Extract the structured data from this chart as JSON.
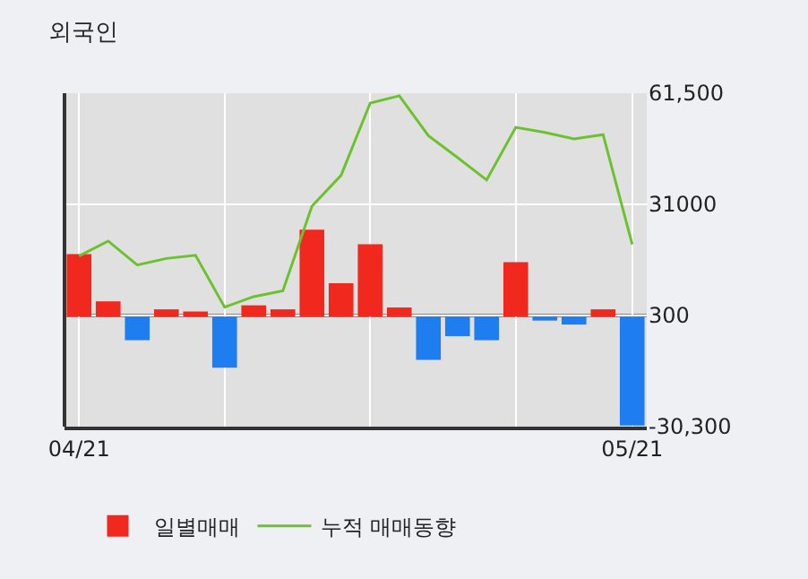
{
  "chart_data": {
    "type": "bar",
    "title": "외국인",
    "categories": [
      "04/21",
      null,
      null,
      null,
      null,
      null,
      null,
      null,
      null,
      null,
      null,
      null,
      null,
      null,
      null,
      null,
      null,
      null,
      null,
      "05/21"
    ],
    "series": [
      {
        "name": "일별매매",
        "colors": [
          "#f0281e",
          "#f0281e",
          "#1e7ef0",
          "#f0281e",
          "#f0281e",
          "#1e7ef0",
          "#f0281e",
          "#f0281e",
          "#f0281e",
          "#f0281e",
          "#f0281e",
          "#f0281e",
          "#1e7ef0",
          "#1e7ef0",
          "#1e7ef0",
          "#f0281e",
          "#1e7ef0",
          "#1e7ef0",
          "#f0281e",
          "#1e7ef0"
        ],
        "values": [
          17200,
          4200,
          -6500,
          2000,
          1400,
          -14100,
          3100,
          2000,
          23900,
          9200,
          19900,
          2500,
          -11900,
          -5400,
          -6500,
          15000,
          -1100,
          -2200,
          2000,
          -30000
        ]
      },
      {
        "name": "누적 매매동향",
        "type": "line",
        "color": "#6cc22e",
        "values": [
          16700,
          20800,
          14200,
          16000,
          16900,
          2600,
          5500,
          7100,
          30400,
          38900,
          58800,
          60800,
          49800,
          43800,
          37600,
          52100,
          50700,
          48900,
          50100,
          19900
        ]
      }
    ],
    "ylim": [
      -30300,
      61500
    ],
    "yticks": [
      {
        "value": 61500,
        "label": "61,500"
      },
      31000,
      300,
      {
        "value": -30300,
        "label": "-30,300"
      }
    ],
    "grid": true,
    "legend": "bottom"
  }
}
